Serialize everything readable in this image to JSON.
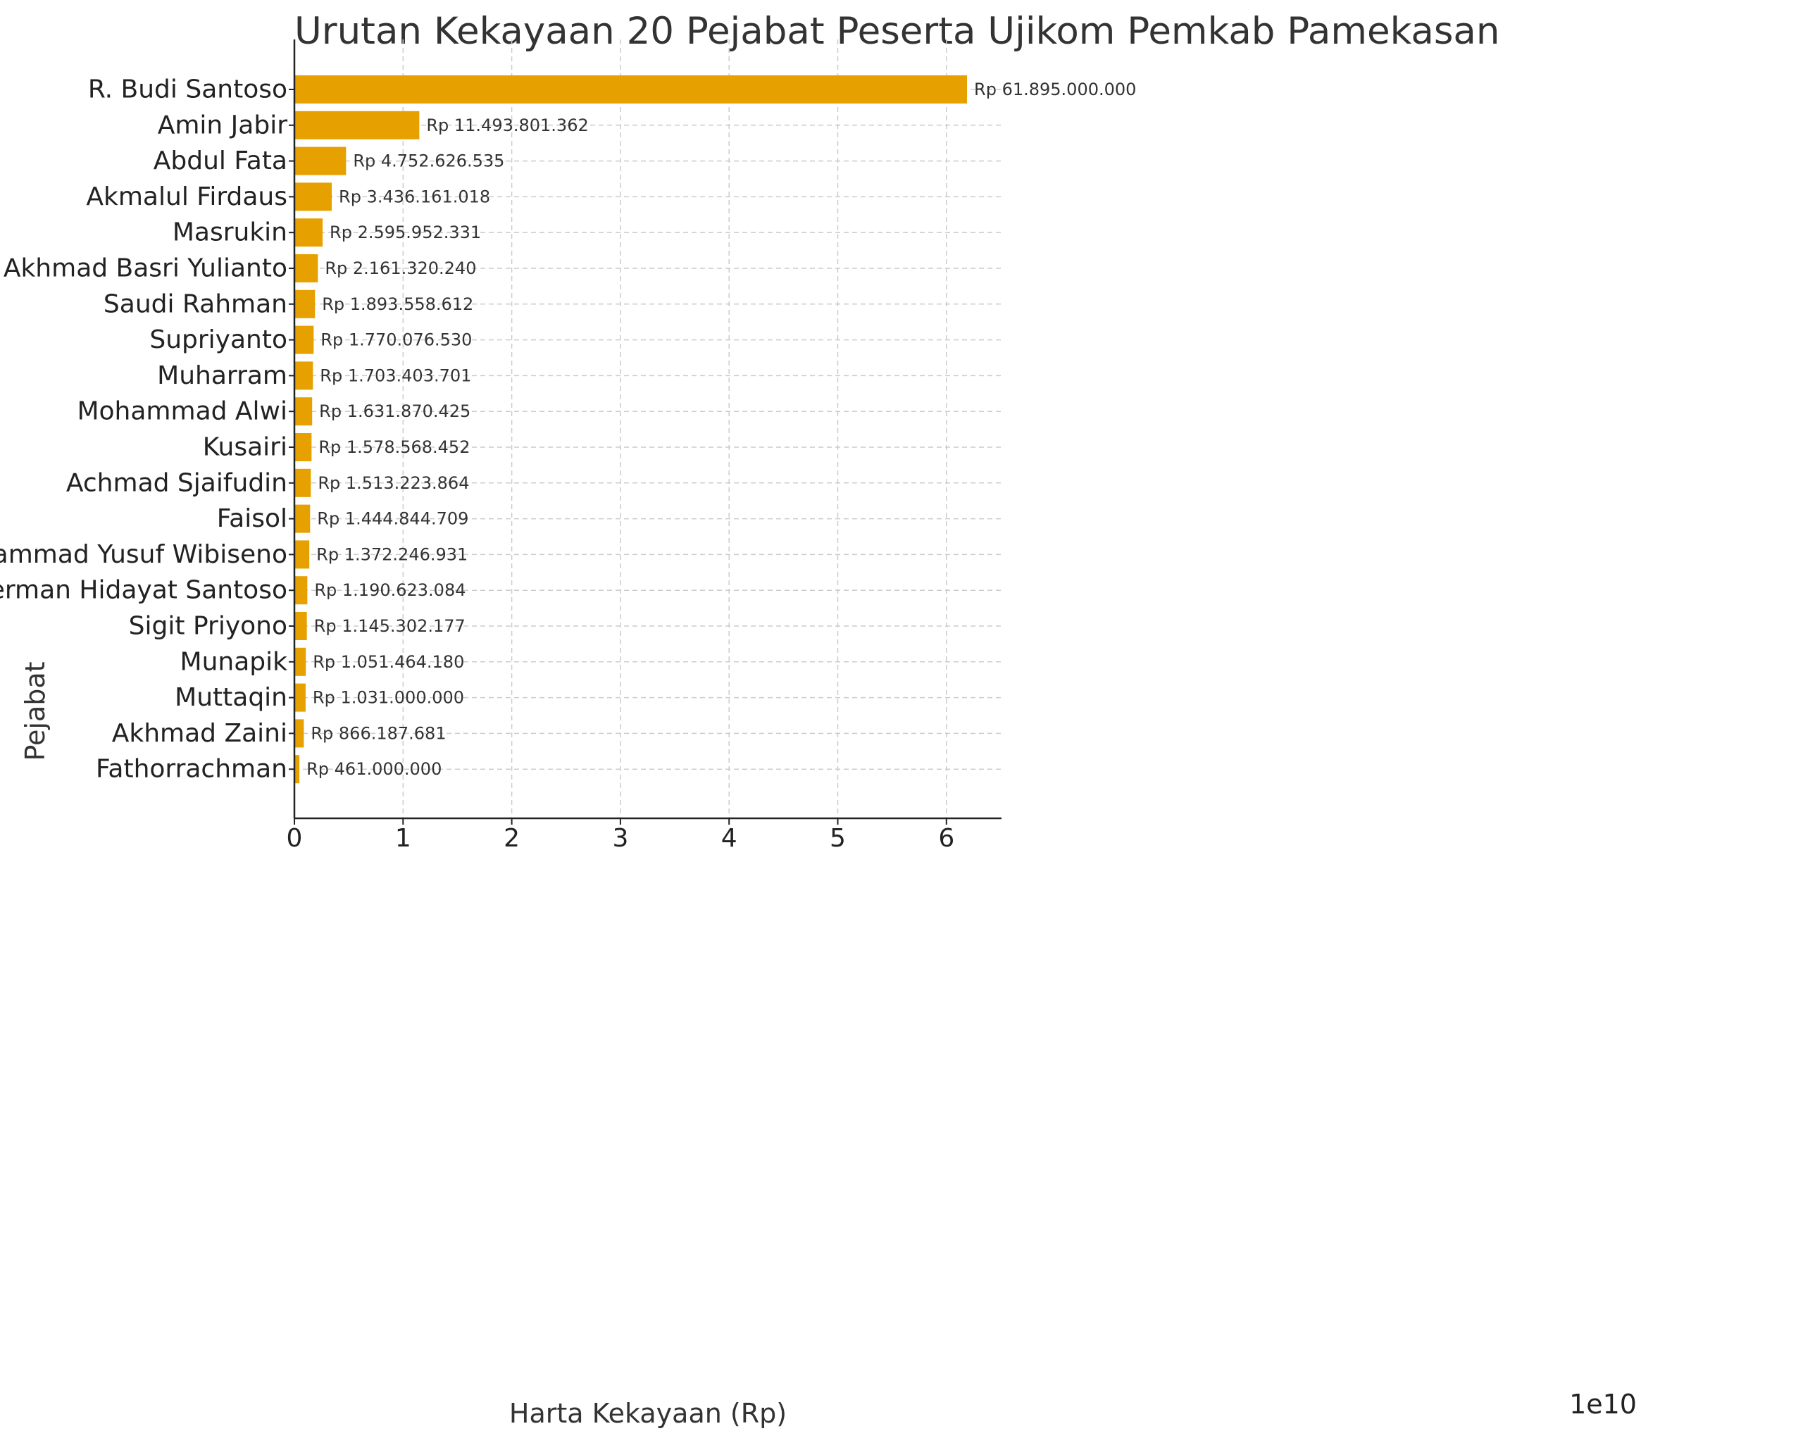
{
  "chart_data": {
    "type": "bar",
    "orientation": "horizontal",
    "title": "Urutan Kekayaan 20 Pejabat Peserta Ujikom Pemkab Pamekasan",
    "xlabel": "Harta Kekayaan (Rp)",
    "ylabel": "Pejabat",
    "x_offset_label": "1e10",
    "xlim": [
      0,
      6.5
    ],
    "x_ticks": [
      "0",
      "1",
      "2",
      "3",
      "4",
      "5",
      "6"
    ],
    "grid": true,
    "bar_color": "#E6A000",
    "categories": [
      "R. Budi Santoso",
      "Amin Jabir",
      "Abdul Fata",
      "Akmalul Firdaus",
      "Masrukin",
      "Akhmad Basri Yulianto",
      "Saudi Rahman",
      "Supriyanto",
      "Muharram",
      "Mohammad Alwi",
      "Kusairi",
      "Achmad Sjaifudin",
      "Faisol",
      "Mohammad Yusuf Wibiseno",
      "Herman Hidayat Santoso",
      "Sigit Priyono",
      "Munapik",
      "Muttaqin",
      "Akhmad Zaini",
      "Fathorrachman"
    ],
    "values": [
      61895000000,
      11493801362,
      4752626535,
      3436161018,
      2595952331,
      2161320240,
      1893558612,
      1770076530,
      1703403701,
      1631870425,
      1578568452,
      1513223864,
      1444844709,
      1372246931,
      1190623084,
      1145302177,
      1051464180,
      1031000000,
      866187681,
      461000000
    ],
    "data_labels": [
      "Rp 61.895.000.000",
      "Rp 11.493.801.362",
      "Rp 4.752.626.535",
      "Rp 3.436.161.018",
      "Rp 2.595.952.331",
      "Rp 2.161.320.240",
      "Rp 1.893.558.612",
      "Rp 1.770.076.530",
      "Rp 1.703.403.701",
      "Rp 1.631.870.425",
      "Rp 1.578.568.452",
      "Rp 1.513.223.864",
      "Rp 1.444.844.709",
      "Rp 1.372.246.931",
      "Rp 1.190.623.084",
      "Rp 1.145.302.177",
      "Rp 1.051.464.180",
      "Rp 1.031.000.000",
      "Rp 866.187.681",
      "Rp 461.000.000"
    ]
  }
}
